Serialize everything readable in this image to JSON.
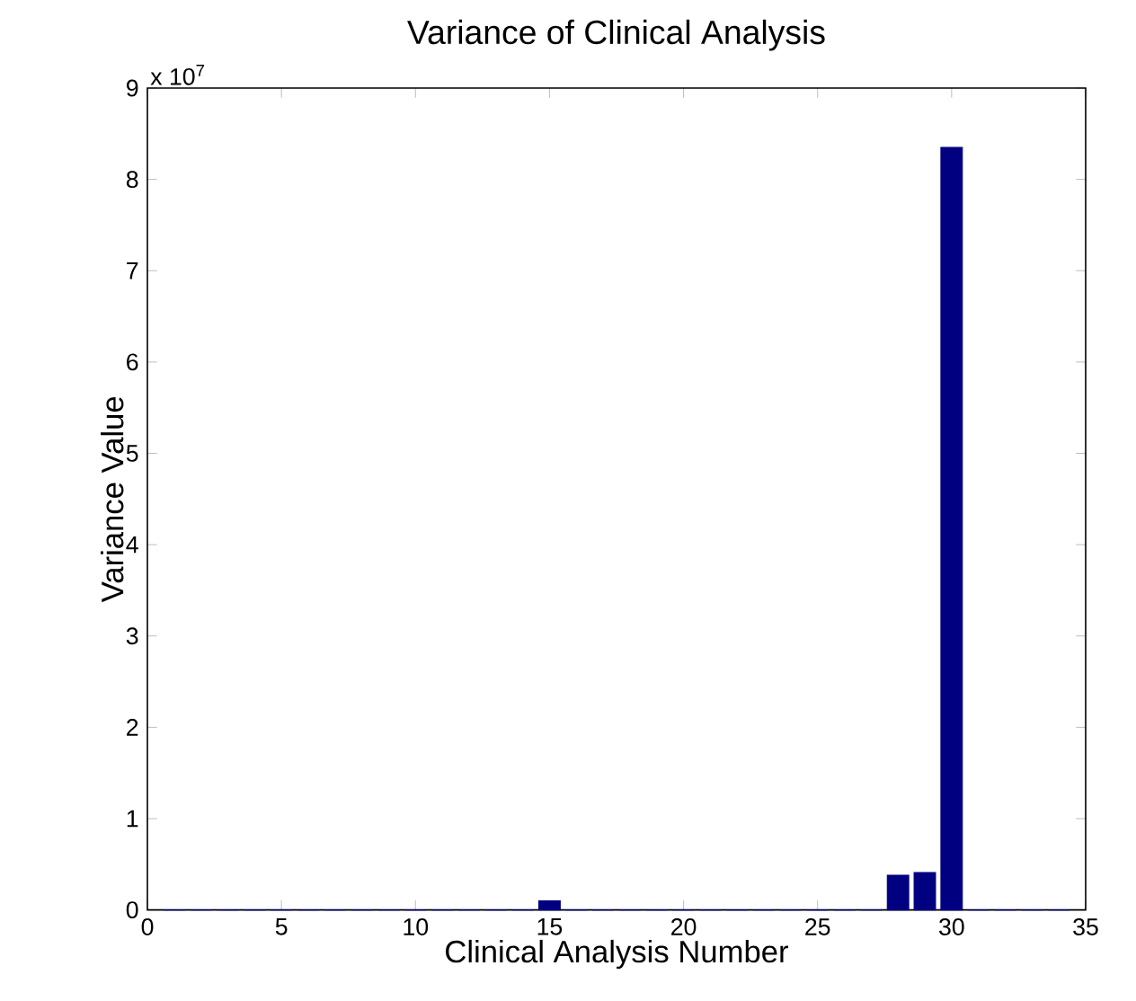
{
  "chart_data": {
    "type": "bar",
    "title": "Variance of Clinical Analysis",
    "xlabel": "Clinical Analysis Number",
    "ylabel": "Variance Value",
    "annotations": [
      "x 10$^{7}$"
    ],
    "x": [
      1,
      2,
      3,
      4,
      5,
      6,
      7,
      8,
      9,
      10,
      11,
      12,
      13,
      14,
      15,
      16,
      17,
      18,
      19,
      20,
      21,
      22,
      23,
      24,
      25,
      26,
      27,
      28,
      29,
      30,
      31,
      32,
      33,
      34
    ],
    "values": [
      0,
      0,
      0,
      0,
      0,
      0,
      0,
      0,
      0,
      0,
      0,
      0,
      0,
      0,
      0.1,
      0,
      0,
      0,
      0,
      0,
      0,
      0,
      0,
      0,
      0,
      0,
      0,
      0.38,
      0.41,
      8.35,
      0,
      0,
      0,
      0
    ],
    "color": "#000080",
    "xlim": [
      0,
      35
    ],
    "xticks": [
      0,
      5,
      10,
      15,
      20,
      25,
      30,
      35
    ],
    "ylim": [
      0,
      9
    ],
    "yticks": [
      0,
      1,
      2,
      3,
      4,
      5,
      6,
      7,
      8,
      9
    ]
  }
}
